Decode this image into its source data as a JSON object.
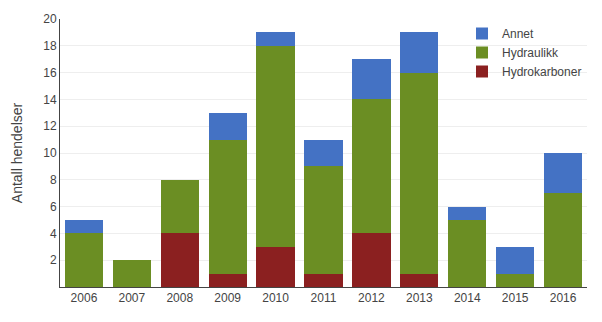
{
  "chart_data": {
    "type": "bar",
    "stacked": true,
    "categories": [
      "2006",
      "2007",
      "2008",
      "2009",
      "2010",
      "2011",
      "2012",
      "2013",
      "2014",
      "2015",
      "2016"
    ],
    "series": [
      {
        "name": "Hydrokarboner",
        "color": "#8B2020",
        "values": [
          0,
          0,
          4,
          1,
          3,
          1,
          4,
          1,
          0,
          0,
          0
        ]
      },
      {
        "name": "Hydraulikk",
        "color": "#6B8E23",
        "values": [
          4,
          2,
          4,
          10,
          15,
          8,
          10,
          15,
          5,
          1,
          7
        ]
      },
      {
        "name": "Annet",
        "color": "#4472C4",
        "values": [
          1,
          0,
          0,
          2,
          1,
          2,
          3,
          3,
          1,
          2,
          3
        ]
      }
    ],
    "ylabel": "Antall hendelser",
    "ylim": [
      0,
      20
    ],
    "yticks": [
      2,
      4,
      6,
      8,
      10,
      12,
      14,
      16,
      18,
      20
    ],
    "grid": true,
    "legend": "upper right"
  }
}
